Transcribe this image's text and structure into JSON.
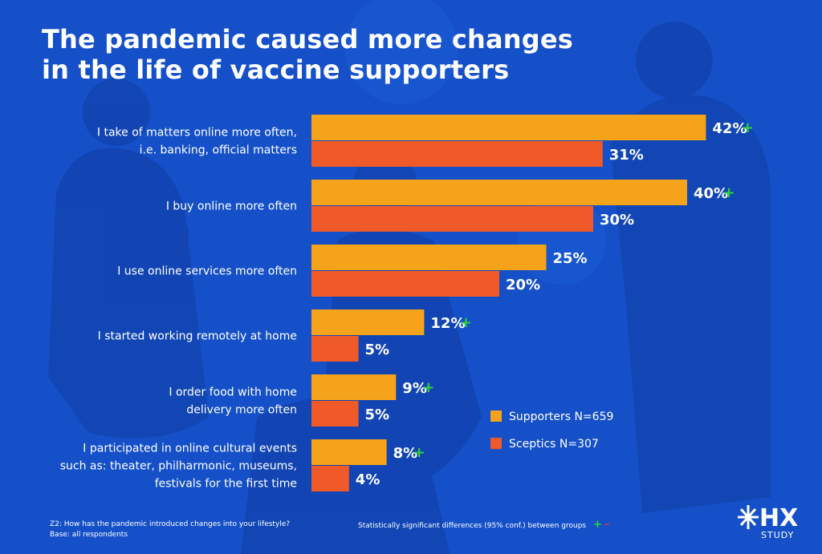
{
  "title_lines": [
    "The pandemic caused more changes",
    "in the life of vaccine supporters"
  ],
  "colors": {
    "background": "#1550c8",
    "supporters": "#f5a31a",
    "sceptics": "#f05a28",
    "sig_plus": "#2fd53a",
    "sig_minus": "#e8313a"
  },
  "chart_data": {
    "type": "bar",
    "orientation": "horizontal",
    "categories": [
      [
        "I take of matters online more often,",
        "i.e. banking, official matters"
      ],
      [
        "I buy online more often"
      ],
      [
        "I use online services more often"
      ],
      [
        "I started working remotely at home"
      ],
      [
        "I order food with home",
        "delivery more often"
      ],
      [
        "I participated in online cultural events",
        "such as: theater, philharmonic, museums,",
        "festivals for the first time"
      ]
    ],
    "series": [
      {
        "name": "Supporters N=659",
        "values": [
          42,
          40,
          25,
          12,
          9,
          8
        ],
        "labels": [
          "42%",
          "40%",
          "25%",
          "12%",
          "9%",
          "8%"
        ],
        "significant": [
          true,
          true,
          false,
          true,
          true,
          true
        ]
      },
      {
        "name": "Sceptics N=307",
        "values": [
          31,
          30,
          20,
          5,
          5,
          4
        ],
        "labels": [
          "31%",
          "30%",
          "20%",
          "5%",
          "5%",
          "4%"
        ],
        "significant": [
          false,
          false,
          false,
          false,
          false,
          false
        ]
      }
    ],
    "legend_position": "right",
    "grid": false
  },
  "significance_plus": "+",
  "significance_minus": "–",
  "footer": {
    "question": "Z2: How has the pandemic introduced changes into your lifestyle?",
    "base": "Base: all respondents",
    "significance_note": "Statistically significant differences (95% conf.) between groups"
  },
  "logo": {
    "main": "HX",
    "sub": "STUDY"
  }
}
